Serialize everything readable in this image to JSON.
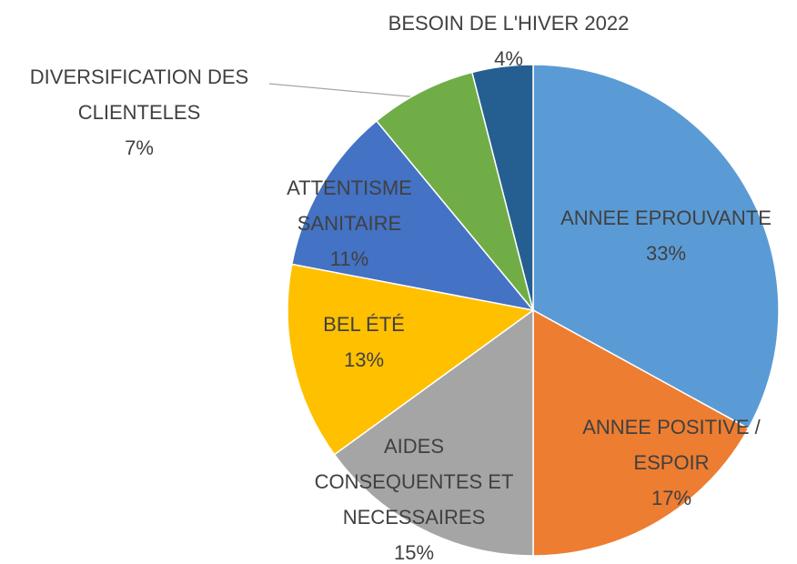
{
  "chart_data": {
    "type": "pie",
    "categories": [
      "ANNEE EPROUVANTE",
      "ANNEE POSITIVE / ESPOIR",
      "AIDES CONSEQUENTES ET NECESSAIRES",
      "BEL ÉTÉ",
      "ATTENTISME SANITAIRE",
      "DIVERSIFICATION DES CLIENTELES",
      "BESOIN DE L'HIVER 2022"
    ],
    "values": [
      33,
      17,
      15,
      13,
      11,
      7,
      4
    ],
    "value_labels": [
      "33%",
      "17%",
      "15%",
      "13%",
      "11%",
      "7%",
      "4%"
    ],
    "colors": [
      "#5b9bd5",
      "#ed7d31",
      "#a5a5a5",
      "#ffc000",
      "#4472c4",
      "#70ad47",
      "#255e91"
    ]
  }
}
